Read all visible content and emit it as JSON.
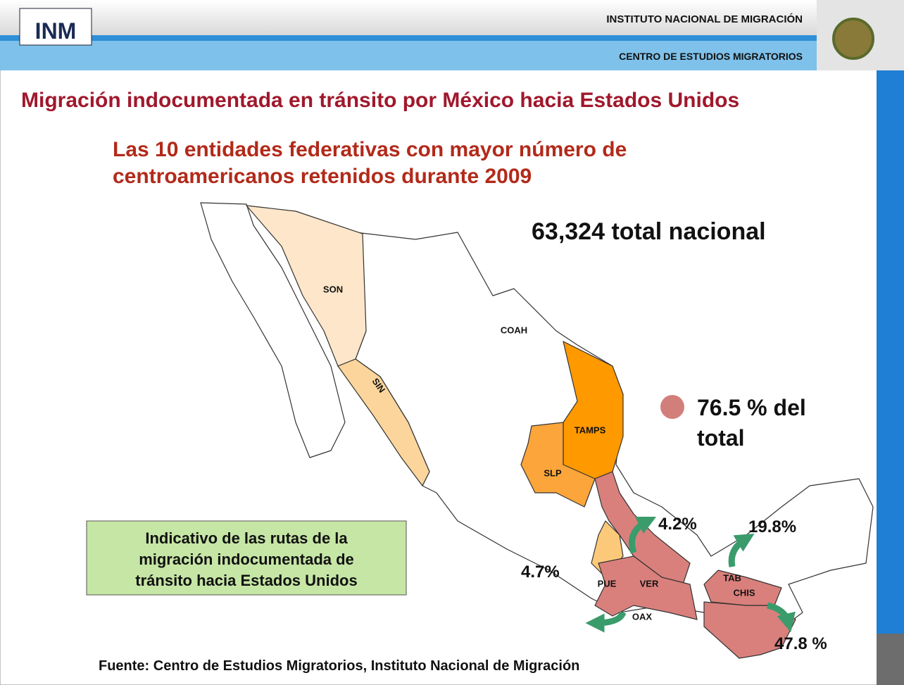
{
  "header": {
    "logo": "INM",
    "agency": "INSTITUTO NACIONAL DE MIGRACIÓN",
    "unit": "CENTRO DE ESTUDIOS MIGRATORIOS"
  },
  "title": "Migración indocumentada en tránsito por México hacia Estados Unidos",
  "subtitle": [
    "Las 10 entidades federativas con mayor número de",
    "centroamericanos retenidos durante 2009"
  ],
  "total": "63,324 total nacional",
  "legend": [
    "76.5 % del",
    "total"
  ],
  "note": [
    "Indicativo de las rutas de la",
    "migración indocumentada de",
    "tránsito hacia Estados Unidos"
  ],
  "states": [
    "SON",
    "SIN",
    "COAH",
    "TAMPS",
    "SLP",
    "PUE",
    "VER",
    "TAB",
    "OAX",
    "CHIS"
  ],
  "routes": [
    "4.2%",
    "19.8%",
    "4.7%",
    "47.8 %"
  ],
  "source": "Fuente: Centro de Estudios Migratorios, Instituto Nacional de Migración"
}
